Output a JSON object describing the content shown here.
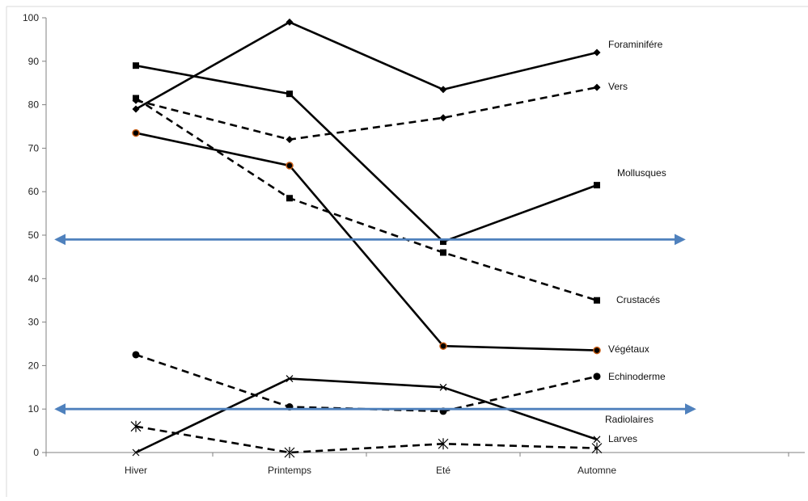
{
  "colors": {
    "series_line": "#000000",
    "marker_orange": "#c55a11",
    "threshold": "#4f81bd",
    "axis": "#808080"
  },
  "chart_data": {
    "type": "line",
    "title": "",
    "xlabel": "",
    "ylabel": "",
    "categories": [
      "Hiver",
      "Printemps",
      "Eté",
      "Automne"
    ],
    "ylim": [
      0,
      100
    ],
    "yticks": [
      0,
      10,
      20,
      30,
      40,
      50,
      60,
      70,
      80,
      90,
      100
    ],
    "grid": false,
    "legend": "none (series labelled at line ends)",
    "series": [
      {
        "name": "Foraminifére",
        "values": [
          79,
          99,
          83.5,
          92
        ],
        "dash": "solid",
        "marker": "diamond"
      },
      {
        "name": "Vers",
        "values": [
          81,
          72,
          77,
          84
        ],
        "dash": "dashed",
        "marker": "diamond"
      },
      {
        "name": "Mollusques",
        "values": [
          89,
          82.5,
          48.5,
          61.5
        ],
        "dash": "solid",
        "marker": "square"
      },
      {
        "name": "Crustacés",
        "values": [
          81.5,
          58.5,
          46,
          35
        ],
        "dash": "dashed",
        "marker": "square"
      },
      {
        "name": "Végétaux",
        "values": [
          73.5,
          66,
          24.5,
          23.5
        ],
        "dash": "solid",
        "marker": "circle-orange"
      },
      {
        "name": "Echinoderme",
        "values": [
          22.5,
          10.5,
          9.5,
          17.5
        ],
        "dash": "dashed",
        "marker": "circle"
      },
      {
        "name": "Radiolaires",
        "values": [
          0,
          17,
          15,
          3
        ],
        "dash": "solid",
        "marker": "x"
      },
      {
        "name": "Larves",
        "values": [
          6,
          0,
          2,
          1
        ],
        "dash": "dashed",
        "marker": "star"
      }
    ],
    "threshold_lines": [
      {
        "value": 49,
        "style": "double-headed arrow"
      },
      {
        "value": 10,
        "style": "double-headed arrow"
      }
    ]
  }
}
